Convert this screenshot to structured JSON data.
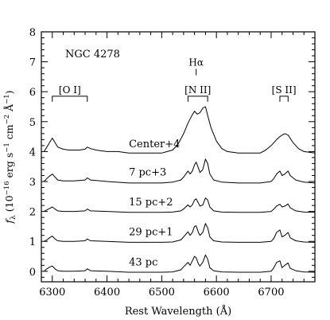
{
  "chart_data": {
    "type": "line",
    "object_label": "NGC 4278",
    "xlabel": "Rest Wavelength (Å)",
    "ylabel_parts": {
      "symbol": "f",
      "symbol_sub": "λ",
      "open": " (10",
      "exp1": "−16",
      "unit1": " erg s",
      "exp2": "−1",
      "unit2": " cm",
      "exp3": "−2",
      "unit3": " Å",
      "exp4": "−1",
      "close": ")"
    },
    "xlim": [
      6280,
      6780
    ],
    "ylim": [
      -0.35,
      8
    ],
    "x_ticks": [
      6300,
      6400,
      6500,
      6600,
      6700
    ],
    "x_tick_labels": [
      "6300",
      "6400",
      "6500",
      "6600",
      "6700"
    ],
    "y_ticks": [
      0,
      1,
      2,
      3,
      4,
      5,
      6,
      7,
      8
    ],
    "y_tick_labels": [
      "0",
      "1",
      "2",
      "3",
      "4",
      "5",
      "6",
      "7",
      "8"
    ],
    "line_annotations": [
      {
        "label": "[O I]",
        "x": [
          6300,
          6364
        ],
        "y": 5.85
      },
      {
        "label": "Hα",
        "x": [
          6563,
          6563
        ],
        "y": 6.55
      },
      {
        "label": "[N II]",
        "x": [
          6548,
          6584
        ],
        "y": 5.85
      },
      {
        "label": "[S II]",
        "x": [
          6716,
          6731
        ],
        "y": 5.85
      }
    ],
    "series": [
      {
        "label": "Center+4",
        "label_x": 6440,
        "label_y": 4.15,
        "x": [
          6285,
          6290,
          6295,
          6300,
          6305,
          6310,
          6320,
          6330,
          6340,
          6350,
          6360,
          6364,
          6370,
          6380,
          6400,
          6420,
          6440,
          6460,
          6480,
          6500,
          6510,
          6520,
          6530,
          6540,
          6548,
          6555,
          6560,
          6565,
          6570,
          6575,
          6580,
          6584,
          6590,
          6600,
          6610,
          6620,
          6640,
          6660,
          6680,
          6690,
          6700,
          6710,
          6716,
          6720,
          6725,
          6731,
          6740,
          6750,
          6760,
          6780
        ],
        "y": [
          4.0,
          4.15,
          4.3,
          4.45,
          4.3,
          4.15,
          4.08,
          4.05,
          4.05,
          4.05,
          4.08,
          4.15,
          4.1,
          4.05,
          4.0,
          4.0,
          3.95,
          3.95,
          3.95,
          3.95,
          4.0,
          4.05,
          4.25,
          4.6,
          4.95,
          5.2,
          5.35,
          5.25,
          5.3,
          5.45,
          5.5,
          5.2,
          4.8,
          4.35,
          4.1,
          4.0,
          3.95,
          3.95,
          3.95,
          4.05,
          4.2,
          4.4,
          4.5,
          4.55,
          4.6,
          4.55,
          4.3,
          4.1,
          4.0,
          3.95
        ]
      },
      {
        "label": "7 pc+3",
        "label_x": 6440,
        "label_y": 3.2,
        "x": [
          6285,
          6290,
          6295,
          6300,
          6305,
          6310,
          6320,
          6340,
          6360,
          6364,
          6370,
          6400,
          6440,
          6480,
          6500,
          6520,
          6535,
          6540,
          6548,
          6552,
          6556,
          6560,
          6563,
          6567,
          6570,
          6575,
          6580,
          6584,
          6588,
          6595,
          6610,
          6640,
          6680,
          6700,
          6705,
          6710,
          6716,
          6720,
          6725,
          6731,
          6735,
          6745,
          6760,
          6780
        ],
        "y": [
          3.0,
          3.1,
          3.18,
          3.25,
          3.15,
          3.05,
          3.02,
          3.02,
          3.05,
          3.12,
          3.05,
          3.0,
          2.95,
          2.95,
          2.95,
          2.98,
          3.05,
          3.15,
          3.35,
          3.25,
          3.35,
          3.55,
          3.65,
          3.45,
          3.3,
          3.4,
          3.75,
          3.6,
          3.25,
          3.05,
          2.98,
          2.95,
          2.95,
          3.0,
          3.1,
          3.25,
          3.35,
          3.2,
          3.25,
          3.35,
          3.2,
          3.05,
          2.98,
          2.95
        ]
      },
      {
        "label": "15 pc+2",
        "label_x": 6440,
        "label_y": 2.2,
        "x": [
          6285,
          6290,
          6295,
          6300,
          6305,
          6310,
          6320,
          6340,
          6360,
          6364,
          6370,
          6400,
          6440,
          6480,
          6500,
          6520,
          6535,
          6540,
          6548,
          6552,
          6556,
          6560,
          6563,
          6567,
          6570,
          6575,
          6580,
          6584,
          6588,
          6595,
          6610,
          6640,
          6680,
          6700,
          6705,
          6710,
          6716,
          6720,
          6725,
          6731,
          6735,
          6745,
          6760,
          6780
        ],
        "y": [
          2.0,
          2.05,
          2.1,
          2.15,
          2.08,
          2.02,
          2.0,
          2.0,
          2.02,
          2.08,
          2.02,
          2.0,
          1.97,
          1.97,
          1.97,
          1.98,
          2.02,
          2.08,
          2.22,
          2.15,
          2.22,
          2.38,
          2.42,
          2.28,
          2.18,
          2.22,
          2.45,
          2.38,
          2.15,
          2.02,
          1.98,
          1.97,
          1.97,
          2.0,
          2.08,
          2.18,
          2.24,
          2.15,
          2.18,
          2.25,
          2.12,
          2.02,
          1.98,
          1.97
        ]
      },
      {
        "label": "29 pc+1",
        "label_x": 6440,
        "label_y": 1.2,
        "x": [
          6285,
          6290,
          6295,
          6300,
          6305,
          6310,
          6320,
          6340,
          6360,
          6364,
          6370,
          6400,
          6440,
          6480,
          6500,
          6520,
          6535,
          6540,
          6548,
          6552,
          6556,
          6560,
          6563,
          6567,
          6570,
          6575,
          6580,
          6584,
          6588,
          6595,
          6610,
          6640,
          6680,
          6700,
          6705,
          6710,
          6716,
          6720,
          6725,
          6731,
          6735,
          6745,
          6760,
          6780
        ],
        "y": [
          1.0,
          1.05,
          1.12,
          1.18,
          1.08,
          1.02,
          1.0,
          1.0,
          1.02,
          1.08,
          1.02,
          1.0,
          0.97,
          0.97,
          0.97,
          0.98,
          1.05,
          1.15,
          1.32,
          1.2,
          1.3,
          1.5,
          1.52,
          1.3,
          1.2,
          1.3,
          1.6,
          1.45,
          1.15,
          1.02,
          0.98,
          0.97,
          0.97,
          1.0,
          1.1,
          1.3,
          1.38,
          1.15,
          1.2,
          1.3,
          1.12,
          1.02,
          0.98,
          0.97
        ]
      },
      {
        "label": "43 pc",
        "label_x": 6440,
        "label_y": 0.2,
        "x": [
          6285,
          6290,
          6295,
          6300,
          6305,
          6310,
          6320,
          6340,
          6360,
          6364,
          6370,
          6400,
          6440,
          6480,
          6500,
          6520,
          6535,
          6540,
          6548,
          6552,
          6556,
          6560,
          6563,
          6567,
          6570,
          6575,
          6580,
          6584,
          6588,
          6595,
          6610,
          6640,
          6680,
          6700,
          6705,
          6710,
          6716,
          6720,
          6725,
          6731,
          6735,
          6745,
          6760,
          6780
        ],
        "y": [
          0.0,
          0.08,
          0.14,
          0.18,
          0.08,
          0.02,
          0.0,
          0.0,
          0.02,
          0.08,
          0.02,
          0.0,
          -0.03,
          -0.03,
          -0.03,
          -0.02,
          0.05,
          0.15,
          0.3,
          0.2,
          0.35,
          0.5,
          0.45,
          0.25,
          0.18,
          0.3,
          0.55,
          0.4,
          0.12,
          0.02,
          -0.02,
          -0.03,
          -0.03,
          0.0,
          0.12,
          0.3,
          0.35,
          0.12,
          0.2,
          0.28,
          0.1,
          0.02,
          -0.02,
          -0.03
        ]
      }
    ]
  }
}
